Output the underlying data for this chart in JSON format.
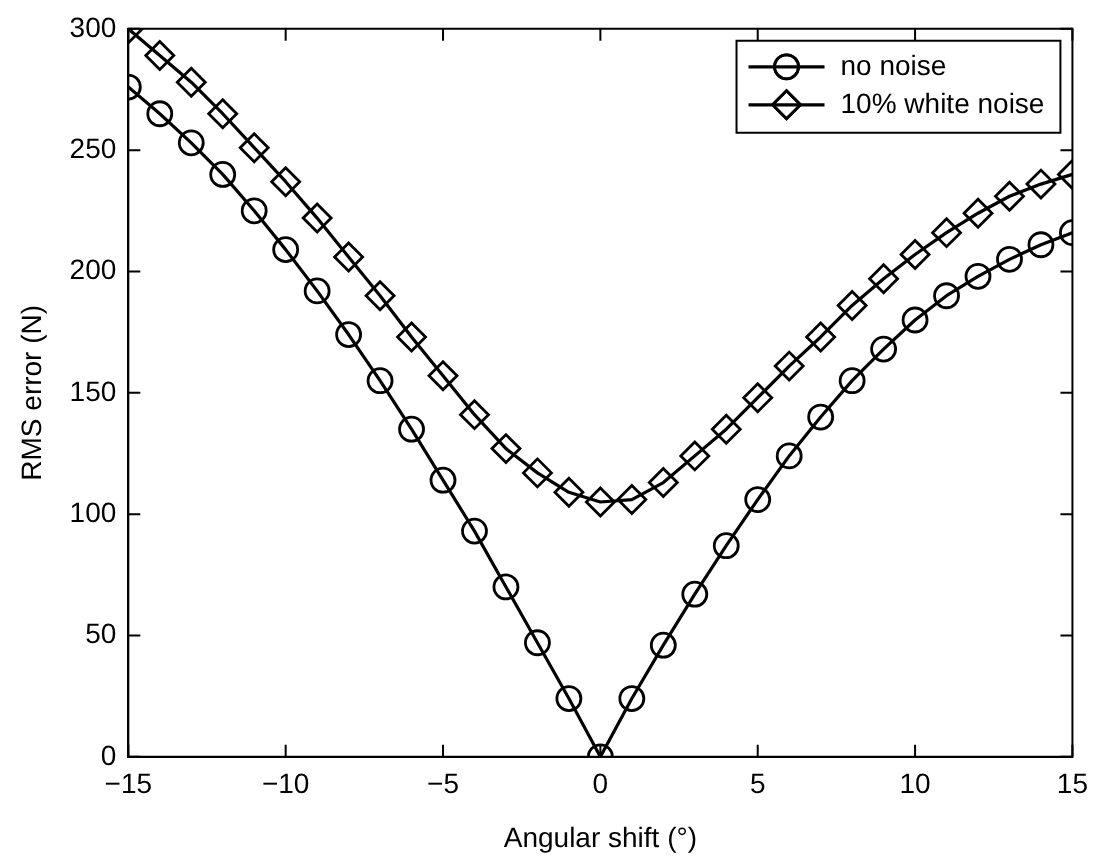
{
  "chart_data": {
    "type": "line",
    "xlabel": "Angular shift (°)",
    "ylabel": "RMS error (N)",
    "x": [
      -15,
      -14,
      -13,
      -12,
      -11,
      -10,
      -9,
      -8,
      -7,
      -6,
      -5,
      -4,
      -3,
      -2,
      -1,
      0,
      1,
      2,
      3,
      4,
      5,
      6,
      7,
      8,
      9,
      10,
      11,
      12,
      13,
      14,
      15
    ],
    "series": [
      {
        "name": "no noise",
        "color": "#000000",
        "marker": "circle",
        "values": [
          276,
          265,
          253,
          240,
          225,
          209,
          192,
          174,
          155,
          135,
          114,
          93,
          70,
          47,
          24,
          0,
          24,
          46,
          67,
          87,
          106,
          124,
          140,
          155,
          168,
          180,
          190,
          198,
          205,
          211,
          216
        ]
      },
      {
        "name": "10% white noise",
        "color": "#000000",
        "marker": "diamond",
        "values": [
          300,
          289,
          278,
          265,
          251,
          237,
          222,
          206,
          190,
          173,
          157,
          141,
          127,
          117,
          109,
          105,
          106,
          113,
          124,
          135,
          148,
          161,
          173,
          186,
          197,
          207,
          216,
          224,
          231,
          236,
          240
        ]
      }
    ],
    "xlim": [
      -15,
      15
    ],
    "xticks": [
      -15,
      -10,
      -5,
      0,
      5,
      10,
      15
    ],
    "ylim": [
      0,
      300
    ],
    "yticks": [
      0,
      50,
      100,
      150,
      200,
      250,
      300
    ],
    "grid": false,
    "legend": "top right",
    "line_style": "solid"
  }
}
